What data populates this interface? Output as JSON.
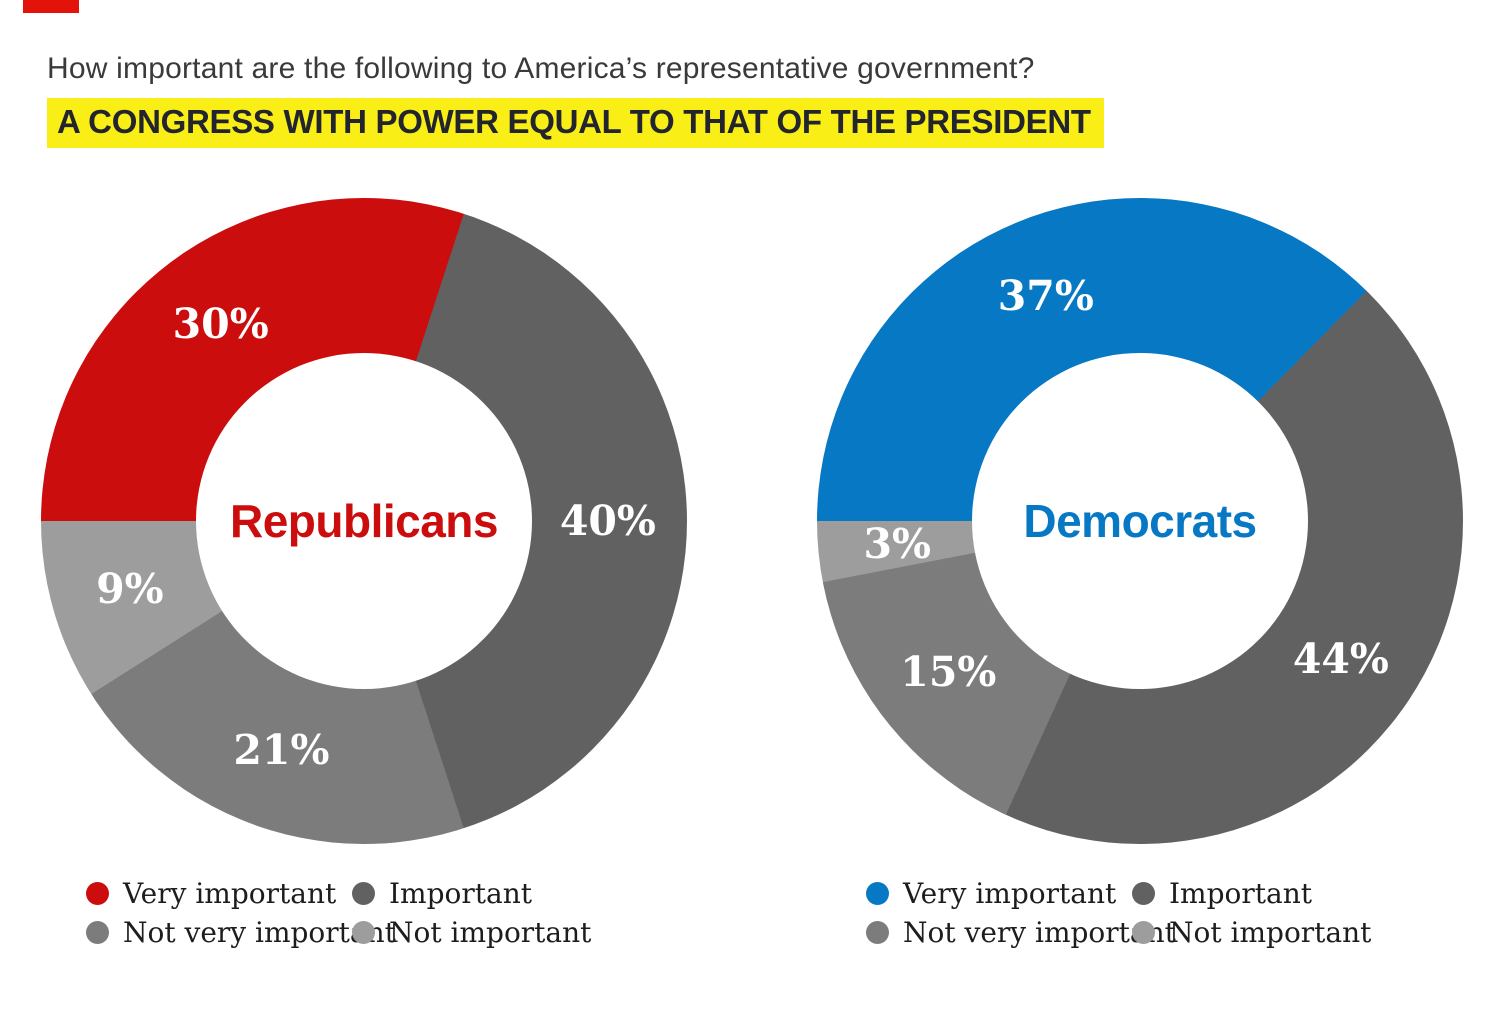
{
  "page": {
    "brand_tab_color": "#e3120b",
    "title": "How important are the following to America’s representative government?",
    "subtitle": "A CONGRESS WITH POWER EQUAL TO THAT OF THE PRESIDENT",
    "subtitle_highlight_color": "#f9ee16"
  },
  "colors": {
    "republican_red": "#cb0d0d",
    "democrat_blue": "#0778c4",
    "important_dark_gray": "#616161",
    "not_very_important_gray": "#7c7c7c",
    "not_important_light_gray": "#9d9d9d",
    "slice_label_text": "#ffffff"
  },
  "chart_data": [
    {
      "type": "pie",
      "variant": "donut",
      "group": "Republicans",
      "group_color": "#cb0d0d",
      "start_angle_deg": 270,
      "direction": "clockwise",
      "hole_ratio": 0.52,
      "categories": [
        "Very important",
        "Important",
        "Not very important",
        "Not important"
      ],
      "values": [
        30,
        40,
        21,
        9
      ],
      "labels": [
        "30%",
        "40%",
        "21%",
        "9%"
      ],
      "colors": [
        "#cb0d0d",
        "#616161",
        "#7c7c7c",
        "#9d9d9d"
      ],
      "legend_position": "below"
    },
    {
      "type": "pie",
      "variant": "donut",
      "group": "Democrats",
      "group_color": "#0778c4",
      "start_angle_deg": 270,
      "direction": "clockwise",
      "hole_ratio": 0.52,
      "categories": [
        "Very important",
        "Important",
        "Not very important",
        "Not important"
      ],
      "values": [
        37,
        44,
        15,
        3
      ],
      "labels": [
        "37%",
        "44%",
        "15%",
        "3%"
      ],
      "colors": [
        "#0778c4",
        "#616161",
        "#7c7c7c",
        "#9d9d9d"
      ],
      "legend_position": "below"
    }
  ]
}
